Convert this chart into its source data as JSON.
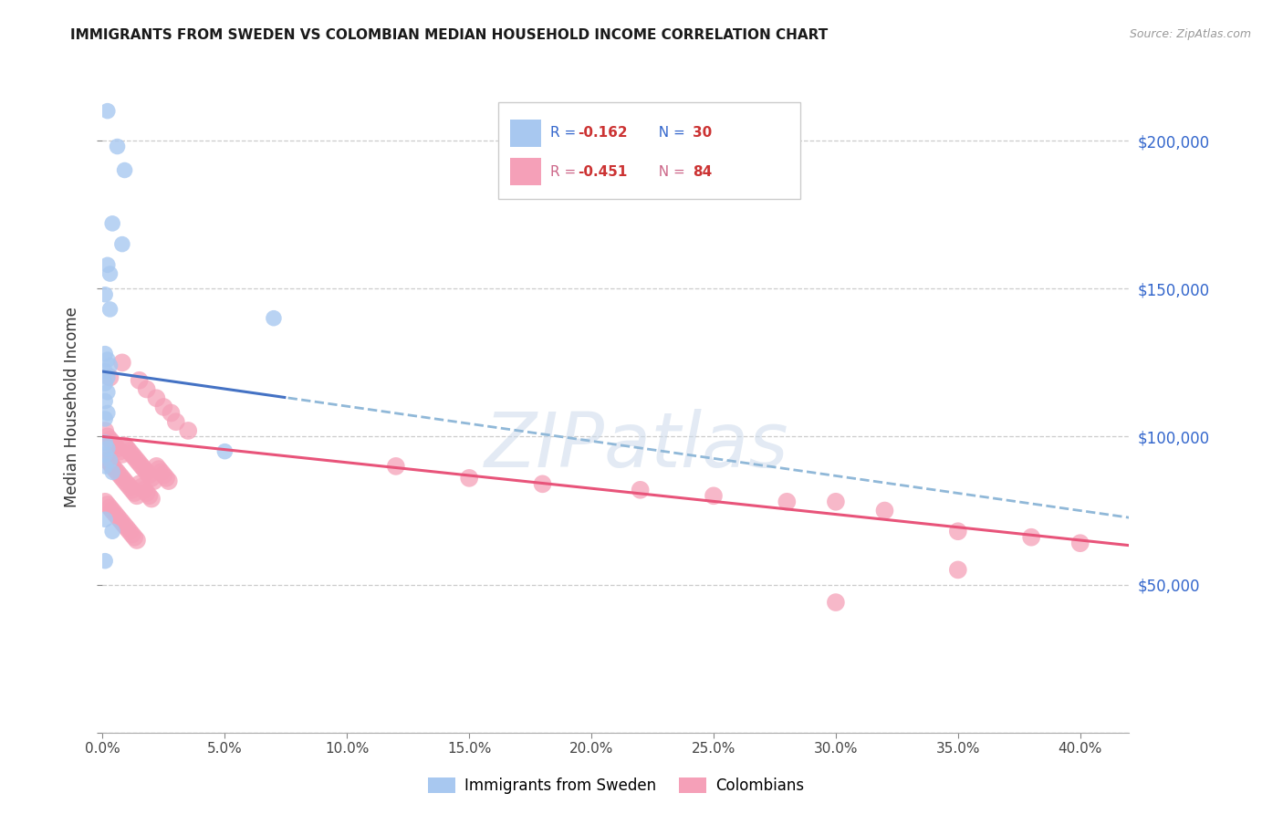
{
  "title": "IMMIGRANTS FROM SWEDEN VS COLOMBIAN MEDIAN HOUSEHOLD INCOME CORRELATION CHART",
  "source": "Source: ZipAtlas.com",
  "ylabel": "Median Household Income",
  "color_sweden": "#a8c8f0",
  "color_colombia": "#f5a0b8",
  "color_sweden_line": "#4472c4",
  "color_colombia_line": "#e8547a",
  "color_sweden_dash": "#90b8d8",
  "ylim": [
    0,
    220000
  ],
  "xlim": [
    0,
    0.42
  ],
  "watermark_text": "ZIPatlas",
  "sweden_x": [
    0.002,
    0.006,
    0.009,
    0.004,
    0.008,
    0.002,
    0.003,
    0.001,
    0.003,
    0.001,
    0.002,
    0.003,
    0.001,
    0.002,
    0.001,
    0.002,
    0.001,
    0.002,
    0.001,
    0.07,
    0.001,
    0.002,
    0.001,
    0.003,
    0.001,
    0.004,
    0.05,
    0.001,
    0.004,
    0.001
  ],
  "sweden_y": [
    210000,
    198000,
    190000,
    172000,
    165000,
    158000,
    155000,
    148000,
    143000,
    128000,
    126000,
    124000,
    122000,
    120000,
    118000,
    115000,
    112000,
    108000,
    106000,
    140000,
    98000,
    96000,
    94000,
    92000,
    90000,
    88000,
    95000,
    72000,
    68000,
    58000
  ],
  "colombia_x": [
    0.001,
    0.002,
    0.003,
    0.004,
    0.005,
    0.006,
    0.007,
    0.008,
    0.009,
    0.01,
    0.011,
    0.012,
    0.013,
    0.014,
    0.015,
    0.016,
    0.017,
    0.018,
    0.019,
    0.02,
    0.021,
    0.022,
    0.023,
    0.024,
    0.025,
    0.026,
    0.027,
    0.001,
    0.002,
    0.003,
    0.004,
    0.005,
    0.006,
    0.007,
    0.008,
    0.009,
    0.01,
    0.011,
    0.012,
    0.013,
    0.014,
    0.015,
    0.016,
    0.017,
    0.018,
    0.019,
    0.02,
    0.001,
    0.002,
    0.003,
    0.004,
    0.005,
    0.006,
    0.007,
    0.008,
    0.009,
    0.01,
    0.011,
    0.012,
    0.013,
    0.014,
    0.003,
    0.008,
    0.015,
    0.018,
    0.022,
    0.025,
    0.028,
    0.03,
    0.035,
    0.12,
    0.15,
    0.18,
    0.22,
    0.25,
    0.28,
    0.3,
    0.32,
    0.35,
    0.38,
    0.4,
    0.3,
    0.35
  ],
  "colombia_y": [
    102000,
    100000,
    99000,
    98000,
    97000,
    96000,
    95000,
    94000,
    97000,
    96000,
    95000,
    94000,
    93000,
    92000,
    91000,
    90000,
    89000,
    88000,
    87000,
    86000,
    85000,
    90000,
    89000,
    88000,
    87000,
    86000,
    85000,
    93000,
    92000,
    91000,
    90000,
    89000,
    88000,
    87000,
    86000,
    85000,
    84000,
    83000,
    82000,
    81000,
    80000,
    84000,
    83000,
    82000,
    81000,
    80000,
    79000,
    78000,
    77000,
    76000,
    75000,
    74000,
    73000,
    72000,
    71000,
    70000,
    69000,
    68000,
    67000,
    66000,
    65000,
    120000,
    125000,
    119000,
    116000,
    113000,
    110000,
    108000,
    105000,
    102000,
    90000,
    86000,
    84000,
    82000,
    80000,
    78000,
    78000,
    75000,
    68000,
    66000,
    64000,
    44000,
    55000
  ]
}
